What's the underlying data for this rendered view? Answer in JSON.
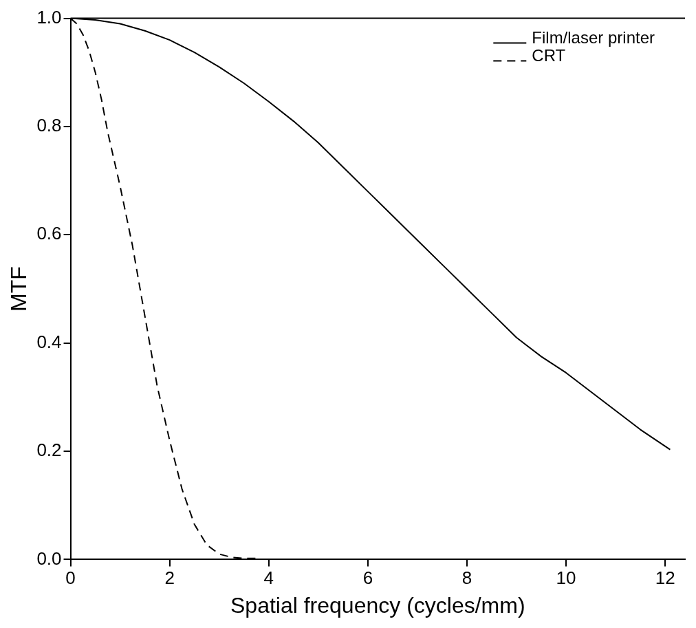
{
  "chart_data": {
    "type": "line",
    "xlabel": "Spatial frequency (cycles/mm)",
    "ylabel": "MTF",
    "xlim": [
      0,
      12.4
    ],
    "ylim": [
      0,
      1
    ],
    "xticks": [
      0,
      2,
      4,
      6,
      8,
      10,
      12
    ],
    "yticks": [
      {
        "value": 0,
        "label": "0.0"
      },
      {
        "value": 0.2,
        "label": "0.2"
      },
      {
        "value": 0.4,
        "label": "0.4"
      },
      {
        "value": 0.6,
        "label": "0.6"
      },
      {
        "value": 0.8,
        "label": "0.8"
      },
      {
        "value": 1,
        "label": "1.0"
      }
    ],
    "grid": false,
    "legend": "top right",
    "marker": "none",
    "series": [
      {
        "name": "Film/laser printer",
        "color": "#000000",
        "line_style": "solid",
        "x": [
          0,
          0.5,
          1,
          1.5,
          2,
          2.5,
          3,
          3.5,
          4,
          4.5,
          5,
          5.5,
          6,
          6.5,
          7,
          7.5,
          8,
          8.5,
          9,
          9.5,
          10,
          10.5,
          11,
          11.5,
          12.1
        ],
        "values": [
          1,
          0.997,
          0.99,
          0.977,
          0.96,
          0.937,
          0.91,
          0.88,
          0.846,
          0.81,
          0.77,
          0.725,
          0.68,
          0.635,
          0.59,
          0.545,
          0.5,
          0.455,
          0.41,
          0.375,
          0.345,
          0.31,
          0.275,
          0.24,
          0.203
        ]
      },
      {
        "name": "CRT",
        "color": "#000000",
        "line_style": "dashed",
        "x": [
          0,
          0.125,
          0.25,
          0.375,
          0.5,
          0.625,
          0.75,
          0.875,
          1,
          1.25,
          1.5,
          1.75,
          2,
          2.25,
          2.5,
          2.75,
          3,
          3.25,
          3.5,
          3.8
        ],
        "values": [
          1,
          0.99,
          0.97,
          0.94,
          0.9,
          0.85,
          0.79,
          0.74,
          0.69,
          0.58,
          0.45,
          0.32,
          0.22,
          0.13,
          0.065,
          0.027,
          0.01,
          0.004,
          0.002,
          0.002
        ]
      }
    ]
  }
}
